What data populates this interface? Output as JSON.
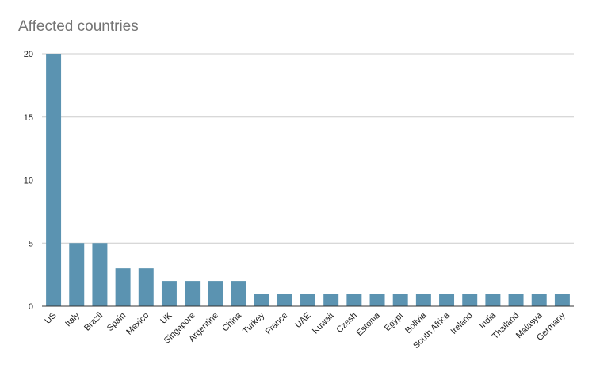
{
  "chart_data": {
    "type": "bar",
    "title": "Affected countries",
    "xlabel": "",
    "ylabel": "",
    "categories": [
      "US",
      "Italy",
      "Brazil",
      "Spain",
      "Mexico",
      "UK",
      "Singapore",
      "Argentine",
      "China",
      "Turkey",
      "France",
      "UAE",
      "Kuwait",
      "Czesh",
      "Estonia",
      "Egypt",
      "Bolivia",
      "South Africa",
      "Ireland",
      "India",
      "Thailand",
      "Malasya",
      "Germany"
    ],
    "values": [
      20,
      5,
      5,
      3,
      3,
      2,
      2,
      2,
      2,
      1,
      1,
      1,
      1,
      1,
      1,
      1,
      1,
      1,
      1,
      1,
      1,
      1,
      1
    ],
    "ylim": [
      0,
      20
    ],
    "yticks": [
      0,
      5,
      10,
      15,
      20
    ],
    "grid": true,
    "legend": "none",
    "bar_color": "#5b93b1",
    "grid_color": "#cccccc",
    "axis_color": "#333333"
  }
}
